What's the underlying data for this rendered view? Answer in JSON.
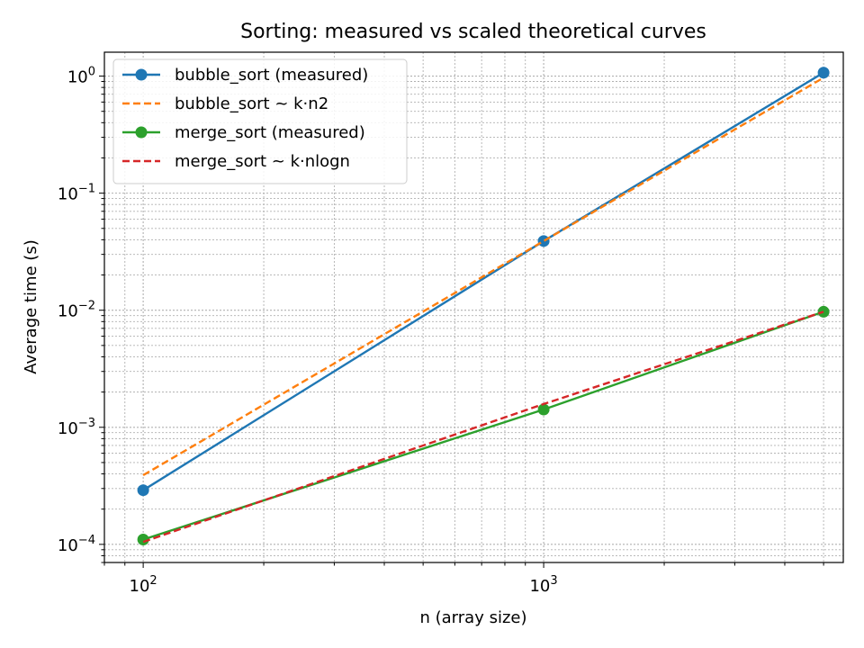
{
  "chart_data": {
    "type": "line",
    "title": "Sorting: measured vs scaled theoretical curves",
    "xlabel": "n (array size)",
    "ylabel": "Average time (s)",
    "xscale": "log",
    "yscale": "log",
    "xlim": [
      80,
      5600
    ],
    "ylim": [
      7e-05,
      1.6
    ],
    "grid": true,
    "grid_minor": true,
    "legend_position": "top-left",
    "x": [
      100,
      1000,
      5000
    ],
    "x_ticks": [
      {
        "value": 100,
        "base": "10",
        "exp": "2"
      },
      {
        "value": 1000,
        "base": "10",
        "exp": "3"
      }
    ],
    "y_ticks": [
      {
        "value": 0.0001,
        "base": "10",
        "exp": "−4"
      },
      {
        "value": 0.001,
        "base": "10",
        "exp": "−3"
      },
      {
        "value": 0.01,
        "base": "10",
        "exp": "−2"
      },
      {
        "value": 0.1,
        "base": "10",
        "exp": "−1"
      },
      {
        "value": 1,
        "base": "10",
        "exp": "0"
      }
    ],
    "series": [
      {
        "name": "bubble_sort (measured)",
        "values": [
          0.00029,
          0.039,
          1.07
        ],
        "color": "#1f77b4",
        "style": "solid",
        "marker": "circle"
      },
      {
        "name": "bubble_sort ~ k·n2",
        "values": [
          0.00039,
          0.039,
          0.97
        ],
        "color": "#ff7f0e",
        "style": "dashed",
        "marker": "none"
      },
      {
        "name": "merge_sort (measured)",
        "values": [
          0.00011,
          0.00142,
          0.0097
        ],
        "color": "#2ca02c",
        "style": "solid",
        "marker": "circle"
      },
      {
        "name": "merge_sort ~ k·nlogn",
        "values": [
          0.000105,
          0.00158,
          0.0097
        ],
        "color": "#d62728",
        "style": "dashed",
        "marker": "none"
      }
    ]
  }
}
